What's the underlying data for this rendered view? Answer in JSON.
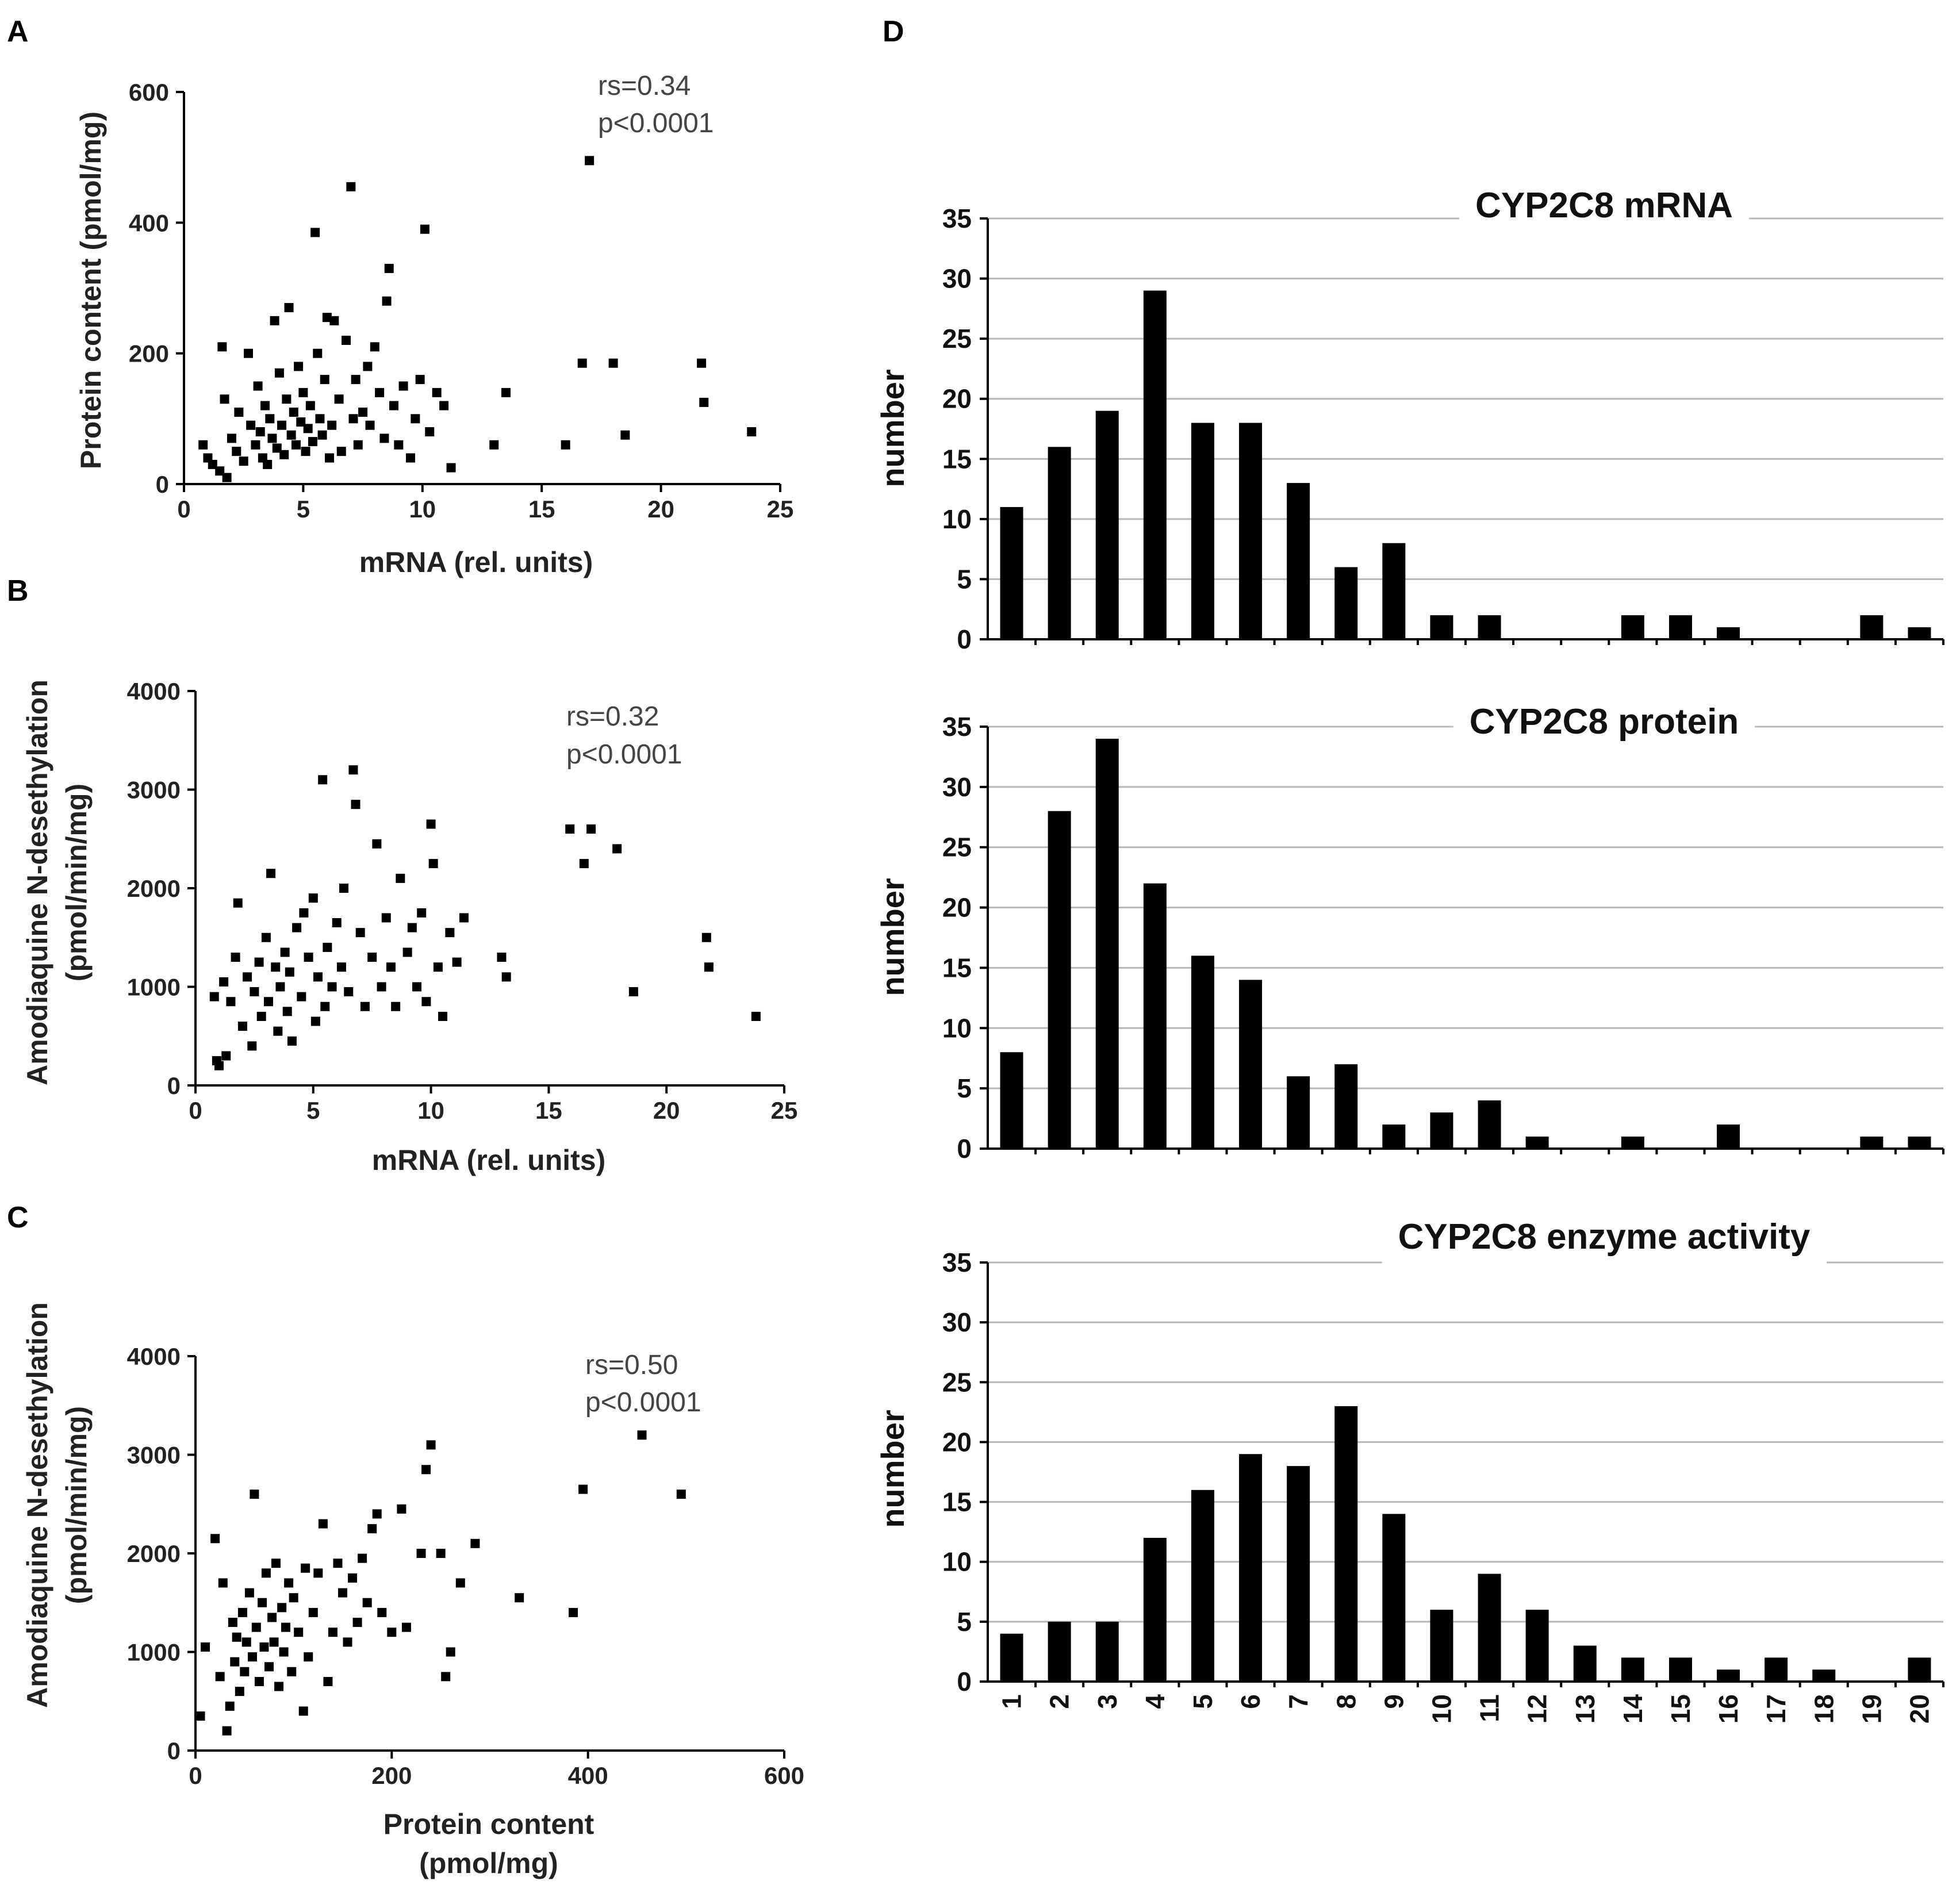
{
  "chart_data": [
    {
      "panel": "A",
      "type": "scatter",
      "xlabel": "mRNA (rel. units)",
      "ylabel": "Protein content (pmol/mg)",
      "xlim": [
        0,
        25
      ],
      "ylim": [
        0,
        600
      ],
      "xticks": [
        0,
        5,
        10,
        15,
        20,
        25
      ],
      "yticks": [
        0,
        200,
        400,
        600
      ],
      "annotation": [
        "rs=0.34",
        "p<0.0001"
      ],
      "points": [
        [
          0.8,
          60
        ],
        [
          1.0,
          40
        ],
        [
          1.2,
          30
        ],
        [
          1.5,
          20
        ],
        [
          1.6,
          210
        ],
        [
          1.7,
          130
        ],
        [
          1.8,
          10
        ],
        [
          2.0,
          70
        ],
        [
          2.2,
          50
        ],
        [
          2.3,
          110
        ],
        [
          2.5,
          35
        ],
        [
          2.7,
          200
        ],
        [
          2.8,
          90
        ],
        [
          3.0,
          60
        ],
        [
          3.1,
          150
        ],
        [
          3.2,
          80
        ],
        [
          3.3,
          40
        ],
        [
          3.4,
          120
        ],
        [
          3.5,
          30
        ],
        [
          3.6,
          100
        ],
        [
          3.7,
          70
        ],
        [
          3.8,
          250
        ],
        [
          3.9,
          55
        ],
        [
          4.0,
          170
        ],
        [
          4.1,
          90
        ],
        [
          4.2,
          45
        ],
        [
          4.3,
          130
        ],
        [
          4.4,
          270
        ],
        [
          4.5,
          75
        ],
        [
          4.6,
          110
        ],
        [
          4.7,
          60
        ],
        [
          4.8,
          180
        ],
        [
          4.9,
          95
        ],
        [
          5.0,
          140
        ],
        [
          5.1,
          50
        ],
        [
          5.2,
          85
        ],
        [
          5.3,
          120
        ],
        [
          5.4,
          65
        ],
        [
          5.5,
          385
        ],
        [
          5.6,
          200
        ],
        [
          5.7,
          100
        ],
        [
          5.8,
          75
        ],
        [
          5.9,
          160
        ],
        [
          6.0,
          255
        ],
        [
          6.1,
          40
        ],
        [
          6.2,
          90
        ],
        [
          6.3,
          250
        ],
        [
          6.5,
          130
        ],
        [
          6.6,
          50
        ],
        [
          6.8,
          220
        ],
        [
          7.0,
          455
        ],
        [
          7.1,
          100
        ],
        [
          7.2,
          160
        ],
        [
          7.3,
          60
        ],
        [
          7.5,
          110
        ],
        [
          7.7,
          180
        ],
        [
          7.8,
          90
        ],
        [
          8.0,
          210
        ],
        [
          8.2,
          140
        ],
        [
          8.4,
          70
        ],
        [
          8.5,
          280
        ],
        [
          8.6,
          330
        ],
        [
          8.8,
          120
        ],
        [
          9.0,
          60
        ],
        [
          9.2,
          150
        ],
        [
          9.5,
          40
        ],
        [
          9.7,
          100
        ],
        [
          9.9,
          160
        ],
        [
          10.1,
          390
        ],
        [
          10.3,
          80
        ],
        [
          10.6,
          140
        ],
        [
          10.9,
          120
        ],
        [
          11.2,
          25
        ],
        [
          13.0,
          60
        ],
        [
          13.5,
          140
        ],
        [
          16.0,
          60
        ],
        [
          16.7,
          185
        ],
        [
          17.0,
          495
        ],
        [
          18.0,
          185
        ],
        [
          18.5,
          75
        ],
        [
          21.7,
          185
        ],
        [
          21.8,
          125
        ],
        [
          23.8,
          80
        ]
      ]
    },
    {
      "panel": "B",
      "type": "scatter",
      "xlabel": "mRNA (rel. units)",
      "ylabel": "Amodiaquine N-desethylation (pmol/min/mg)",
      "xlim": [
        0,
        25
      ],
      "ylim": [
        0,
        4000
      ],
      "xticks": [
        0,
        5,
        10,
        15,
        20,
        25
      ],
      "yticks": [
        0,
        1000,
        2000,
        3000,
        4000
      ],
      "annotation": [
        "rs=0.32",
        "p<0.0001"
      ],
      "points": [
        [
          0.8,
          900
        ],
        [
          0.9,
          250
        ],
        [
          1.0,
          200
        ],
        [
          1.2,
          1050
        ],
        [
          1.3,
          300
        ],
        [
          1.5,
          850
        ],
        [
          1.7,
          1300
        ],
        [
          1.8,
          1850
        ],
        [
          2.0,
          600
        ],
        [
          2.2,
          1100
        ],
        [
          2.4,
          400
        ],
        [
          2.5,
          950
        ],
        [
          2.7,
          1250
        ],
        [
          2.8,
          700
        ],
        [
          3.0,
          1500
        ],
        [
          3.1,
          850
        ],
        [
          3.2,
          2150
        ],
        [
          3.4,
          1200
        ],
        [
          3.5,
          550
        ],
        [
          3.6,
          1000
        ],
        [
          3.8,
          1350
        ],
        [
          3.9,
          750
        ],
        [
          4.0,
          1150
        ],
        [
          4.1,
          450
        ],
        [
          4.3,
          1600
        ],
        [
          4.5,
          900
        ],
        [
          4.6,
          1750
        ],
        [
          4.8,
          1300
        ],
        [
          5.0,
          1900
        ],
        [
          5.1,
          650
        ],
        [
          5.2,
          1100
        ],
        [
          5.4,
          3100
        ],
        [
          5.5,
          800
        ],
        [
          5.6,
          1400
        ],
        [
          5.8,
          1000
        ],
        [
          6.0,
          1650
        ],
        [
          6.2,
          1200
        ],
        [
          6.3,
          2000
        ],
        [
          6.5,
          950
        ],
        [
          6.7,
          3200
        ],
        [
          6.8,
          2850
        ],
        [
          7.0,
          1550
        ],
        [
          7.2,
          800
        ],
        [
          7.5,
          1300
        ],
        [
          7.7,
          2450
        ],
        [
          7.9,
          1000
        ],
        [
          8.1,
          1700
        ],
        [
          8.3,
          1200
        ],
        [
          8.5,
          800
        ],
        [
          8.7,
          2100
        ],
        [
          9.0,
          1350
        ],
        [
          9.2,
          1600
        ],
        [
          9.4,
          1000
        ],
        [
          9.6,
          1750
        ],
        [
          9.8,
          850
        ],
        [
          10.0,
          2650
        ],
        [
          10.1,
          2250
        ],
        [
          10.3,
          1200
        ],
        [
          10.5,
          700
        ],
        [
          10.8,
          1550
        ],
        [
          11.1,
          1250
        ],
        [
          11.4,
          1700
        ],
        [
          13.0,
          1300
        ],
        [
          13.2,
          1100
        ],
        [
          15.9,
          2600
        ],
        [
          16.5,
          2250
        ],
        [
          16.8,
          2600
        ],
        [
          17.9,
          2400
        ],
        [
          18.6,
          950
        ],
        [
          21.7,
          1500
        ],
        [
          21.8,
          1200
        ],
        [
          23.8,
          700
        ]
      ]
    },
    {
      "panel": "C",
      "type": "scatter",
      "xlabel": "Protein content (pmol/mg)",
      "ylabel": "Amodiaquine N-desethylation (pmol/min/mg)",
      "xlim": [
        0,
        600
      ],
      "ylim": [
        0,
        4000
      ],
      "xticks": [
        0,
        200,
        400,
        600
      ],
      "yticks": [
        0,
        1000,
        2000,
        3000,
        4000
      ],
      "annotation": [
        "rs=0.50",
        "p<0.0001"
      ],
      "points": [
        [
          5,
          350
        ],
        [
          10,
          1050
        ],
        [
          20,
          2150
        ],
        [
          25,
          750
        ],
        [
          28,
          1700
        ],
        [
          32,
          200
        ],
        [
          35,
          450
        ],
        [
          38,
          1300
        ],
        [
          40,
          900
        ],
        [
          42,
          1150
        ],
        [
          45,
          600
        ],
        [
          48,
          1400
        ],
        [
          50,
          800
        ],
        [
          52,
          1100
        ],
        [
          55,
          1600
        ],
        [
          58,
          950
        ],
        [
          60,
          2600
        ],
        [
          62,
          1250
        ],
        [
          65,
          700
        ],
        [
          68,
          1500
        ],
        [
          70,
          1050
        ],
        [
          72,
          1800
        ],
        [
          75,
          850
        ],
        [
          78,
          1350
        ],
        [
          80,
          1100
        ],
        [
          82,
          1900
        ],
        [
          85,
          650
        ],
        [
          88,
          1450
        ],
        [
          90,
          1000
        ],
        [
          92,
          1250
        ],
        [
          95,
          1700
        ],
        [
          98,
          800
        ],
        [
          100,
          1550
        ],
        [
          105,
          1200
        ],
        [
          110,
          400
        ],
        [
          112,
          1850
        ],
        [
          115,
          950
        ],
        [
          120,
          1400
        ],
        [
          125,
          1800
        ],
        [
          130,
          2300
        ],
        [
          135,
          700
        ],
        [
          140,
          1200
        ],
        [
          145,
          1900
        ],
        [
          150,
          1600
        ],
        [
          155,
          1100
        ],
        [
          160,
          1750
        ],
        [
          165,
          1300
        ],
        [
          170,
          1950
        ],
        [
          175,
          1500
        ],
        [
          180,
          2250
        ],
        [
          185,
          2400
        ],
        [
          190,
          1400
        ],
        [
          200,
          1200
        ],
        [
          210,
          2450
        ],
        [
          215,
          1250
        ],
        [
          230,
          2000
        ],
        [
          235,
          2850
        ],
        [
          240,
          3100
        ],
        [
          250,
          2000
        ],
        [
          255,
          750
        ],
        [
          260,
          1000
        ],
        [
          270,
          1700
        ],
        [
          285,
          2100
        ],
        [
          330,
          1550
        ],
        [
          385,
          1400
        ],
        [
          395,
          2650
        ],
        [
          455,
          3200
        ],
        [
          495,
          2600
        ]
      ]
    },
    {
      "panel": "D",
      "type": "bar",
      "title": "CYP2C8 mRNA",
      "ylabel": "number",
      "categories": [
        "1",
        "2",
        "3",
        "4",
        "5",
        "6",
        "7",
        "8",
        "9",
        "10",
        "11",
        "12",
        "13",
        "14",
        "15",
        "16",
        "17",
        "18",
        "19",
        "20"
      ],
      "values": [
        11,
        16,
        19,
        29,
        18,
        18,
        13,
        6,
        8,
        2,
        2,
        0,
        0,
        2,
        2,
        1,
        0,
        0,
        2,
        1
      ],
      "ylim": [
        0,
        35
      ],
      "yticks": [
        0,
        5,
        10,
        15,
        20,
        25,
        30,
        35
      ]
    },
    {
      "panel": "D",
      "type": "bar",
      "title": "CYP2C8 protein",
      "ylabel": "number",
      "categories": [
        "1",
        "2",
        "3",
        "4",
        "5",
        "6",
        "7",
        "8",
        "9",
        "10",
        "11",
        "12",
        "13",
        "14",
        "15",
        "16",
        "17",
        "18",
        "19",
        "20"
      ],
      "values": [
        8,
        28,
        34,
        22,
        16,
        14,
        6,
        7,
        2,
        3,
        4,
        1,
        0,
        1,
        0,
        2,
        0,
        0,
        1,
        1
      ],
      "ylim": [
        0,
        35
      ],
      "yticks": [
        0,
        5,
        10,
        15,
        20,
        25,
        30,
        35
      ]
    },
    {
      "panel": "D",
      "type": "bar",
      "title": "CYP2C8 enzyme activity",
      "ylabel": "number",
      "categories": [
        "1",
        "2",
        "3",
        "4",
        "5",
        "6",
        "7",
        "8",
        "9",
        "10",
        "11",
        "12",
        "13",
        "14",
        "15",
        "16",
        "17",
        "18",
        "19",
        "20"
      ],
      "values": [
        4,
        5,
        5,
        12,
        16,
        19,
        18,
        23,
        14,
        6,
        9,
        6,
        3,
        2,
        2,
        1,
        2,
        1,
        0,
        2
      ],
      "ylim": [
        0,
        35
      ],
      "yticks": [
        0,
        5,
        10,
        15,
        20,
        25,
        30,
        35
      ]
    }
  ]
}
